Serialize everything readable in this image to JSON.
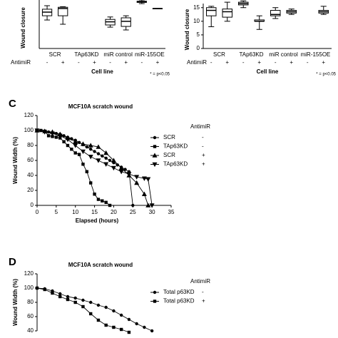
{
  "chart_data": [
    {
      "type": "box",
      "ylabel": "Wound closure",
      "xlabel": "Cell line",
      "note": "* = p<0.05",
      "categories": [
        "SCR",
        "TAp63KD",
        "miR control",
        "miR-155OE"
      ],
      "row_label": "AntimiR",
      "row_values": [
        "-",
        "+",
        "-",
        "+",
        "-",
        "+",
        "-",
        "+"
      ],
      "ylim": [
        0,
        40
      ],
      "boxes": {
        "min": [
          23.5,
          20,
          null,
          null,
          17.6,
          15.3,
          37,
          33
        ],
        "q1": [
          27,
          27,
          null,
          null,
          19.4,
          18.2,
          38,
          33
        ],
        "median": [
          30,
          33,
          null,
          null,
          22,
          22.4,
          38.5,
          33
        ],
        "q3": [
          32.4,
          34,
          null,
          null,
          24,
          25.3,
          39,
          33
        ],
        "max": [
          35.3,
          34.5,
          null,
          null,
          26,
          27,
          40,
          33
        ]
      }
    },
    {
      "type": "box",
      "ylabel": "Wound closure",
      "xlabel": "Cell line",
      "note": "* = p<0.05",
      "categories": [
        "SCR",
        "TAp63KD",
        "miR control",
        "miR-155OE"
      ],
      "row_label": "AntimiR",
      "row_values": [
        "-",
        "+",
        "-",
        "+",
        "-",
        "+",
        "-",
        "+"
      ],
      "ylim": [
        0,
        16.5
      ],
      "yticks": [
        0,
        5,
        10,
        15
      ],
      "boxes": {
        "min": [
          8,
          10,
          15,
          7,
          11,
          12.5,
          null,
          12.5
        ],
        "q1": [
          12,
          11.5,
          16,
          10,
          12,
          13,
          null,
          13
        ],
        "median": [
          14,
          13.5,
          16.5,
          10,
          12.5,
          13.5,
          null,
          13.5
        ],
        "q3": [
          15,
          14.5,
          17,
          10.5,
          14,
          14,
          null,
          14
        ],
        "max": [
          15.5,
          17,
          17.5,
          12,
          15,
          14.5,
          null,
          15.5
        ]
      }
    },
    {
      "type": "line",
      "panel": "C",
      "title": "MCF10A scratch wound",
      "xlabel": "Elapsed (hours)",
      "ylabel": "Wound Width (%)",
      "xlim": [
        0,
        35
      ],
      "ylim": [
        0,
        120
      ],
      "xticks": [
        0,
        5,
        10,
        15,
        20,
        25,
        30,
        35
      ],
      "yticks": [
        0,
        20,
        40,
        60,
        80,
        100,
        120
      ],
      "legend_title": "AntimiR",
      "series": [
        {
          "name": "SCR",
          "sign": "-",
          "marker": "circle",
          "color": "#000000",
          "x": [
            0,
            1,
            2,
            3,
            4,
            5,
            6,
            7,
            8,
            9,
            10,
            11,
            12,
            13,
            14,
            15,
            16,
            17,
            18,
            19,
            20,
            21,
            22,
            23,
            24,
            25
          ],
          "values": [
            100,
            100,
            99,
            98,
            97,
            96,
            95,
            93,
            91,
            89,
            87,
            84,
            81,
            78,
            75,
            72,
            69,
            66,
            63,
            60,
            57,
            54,
            51,
            48,
            45,
            0
          ]
        },
        {
          "name": "TAp63KD",
          "sign": "-",
          "marker": "square",
          "color": "#000000",
          "x": [
            0,
            1,
            2,
            3,
            4,
            5,
            6,
            7,
            8,
            9,
            10,
            11,
            12,
            13,
            14,
            15,
            16,
            17,
            18,
            19
          ],
          "values": [
            100,
            100,
            99,
            93,
            92,
            91,
            90,
            85,
            80,
            75,
            70,
            68,
            55,
            45,
            30,
            15,
            8,
            6,
            4,
            0
          ]
        },
        {
          "name": "SCR",
          "sign": "+",
          "marker": "triangle",
          "color": "#000000",
          "x": [
            0,
            2,
            4,
            6,
            8,
            10,
            12,
            14,
            16,
            18,
            20,
            22,
            24,
            26,
            28,
            29
          ],
          "values": [
            100,
            99,
            98,
            95,
            90,
            85,
            82,
            80,
            78,
            70,
            60,
            50,
            40,
            30,
            15,
            0
          ]
        },
        {
          "name": "TAp63KD",
          "sign": "+",
          "marker": "triangle-down",
          "color": "#000000",
          "x": [
            0,
            2,
            4,
            6,
            8,
            10,
            12,
            14,
            16,
            18,
            20,
            22,
            24,
            26,
            28,
            29,
            30
          ],
          "values": [
            100,
            98,
            96,
            93,
            88,
            80,
            72,
            65,
            60,
            55,
            50,
            45,
            42,
            38,
            36,
            35,
            0
          ]
        }
      ]
    },
    {
      "type": "line",
      "panel": "D",
      "title": "MCF10A scratch wound",
      "ylabel": "Wound Width (%)",
      "xlim": [
        0,
        35
      ],
      "ylim": [
        40,
        120
      ],
      "yticks": [
        40,
        60,
        80,
        100,
        120
      ],
      "legend_title": "AntimiR",
      "series": [
        {
          "name": "Total p63KD",
          "sign": "-",
          "marker": "circle",
          "color": "#000000",
          "x": [
            0,
            2,
            4,
            6,
            8,
            10,
            12,
            14,
            16,
            18,
            20,
            22,
            24,
            26,
            28,
            30
          ],
          "values": [
            100,
            99,
            96,
            92,
            88,
            86,
            83,
            80,
            76,
            73,
            68,
            62,
            56,
            50,
            45,
            40
          ]
        },
        {
          "name": "Total p63KD",
          "sign": "+",
          "marker": "square",
          "color": "#000000",
          "x": [
            0,
            2,
            4,
            6,
            8,
            10,
            12,
            14,
            16,
            18,
            20,
            22,
            24
          ],
          "values": [
            100,
            98,
            93,
            88,
            84,
            80,
            74,
            64,
            55,
            48,
            45,
            42,
            38
          ]
        }
      ]
    }
  ]
}
